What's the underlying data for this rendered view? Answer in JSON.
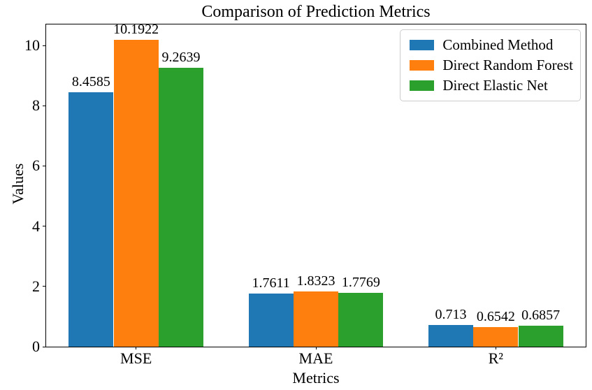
{
  "chart_data": {
    "type": "bar",
    "title": "Comparison of Prediction Metrics",
    "xlabel": "Metrics",
    "ylabel": "Values",
    "categories": [
      "MSE",
      "MAE",
      "R²"
    ],
    "series": [
      {
        "name": "Combined Method",
        "color": "#1f77b4",
        "values": [
          8.4585,
          1.7611,
          0.713
        ],
        "labels": [
          "8.4585",
          "1.7611",
          "0.713"
        ]
      },
      {
        "name": "Direct Random Forest",
        "color": "#ff7f0e",
        "values": [
          10.1922,
          1.8323,
          0.6542
        ],
        "labels": [
          "10.1922",
          "1.8323",
          "0.6542"
        ]
      },
      {
        "name": "Direct Elastic Net",
        "color": "#2ca02c",
        "values": [
          9.2639,
          1.7769,
          0.6857
        ],
        "labels": [
          "9.2639",
          "1.7769",
          "0.6857"
        ]
      }
    ],
    "ylim": [
      0,
      10.7
    ],
    "yticks": [
      0,
      2,
      4,
      6,
      8,
      10
    ],
    "bar_width_fraction": 0.25,
    "grid": false,
    "legend_position": "upper right",
    "frame_color": "#000000",
    "legend_border_color": "#cccccc"
  }
}
